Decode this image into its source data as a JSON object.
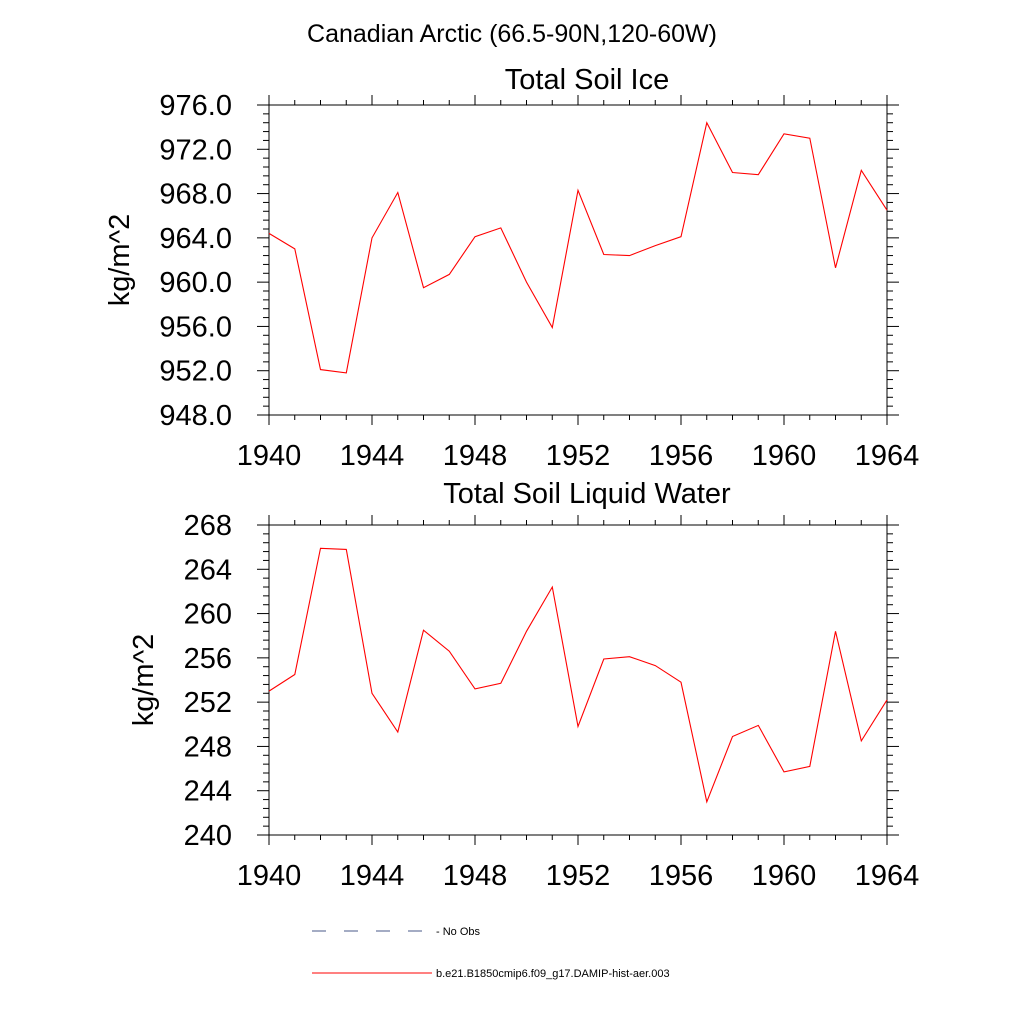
{
  "figure_title": "Canadian Arctic (66.5-90N,120-60W)",
  "chart_data": [
    {
      "type": "line",
      "title": "Total Soil Ice",
      "xlabel": "",
      "ylabel": "kg/m^2",
      "xlim": [
        1940,
        1964
      ],
      "ylim": [
        948,
        976
      ],
      "x_ticks": [
        1940,
        1944,
        1948,
        1952,
        1956,
        1960,
        1964
      ],
      "x_tick_labels": [
        "1940",
        "1944",
        "1948",
        "1952",
        "1956",
        "1960",
        "1964"
      ],
      "y_ticks": [
        948,
        952,
        956,
        960,
        964,
        968,
        972,
        976
      ],
      "y_tick_labels": [
        "948.0",
        "952.0",
        "956.0",
        "960.0",
        "964.0",
        "968.0",
        "972.0",
        "976.0"
      ],
      "grid": false,
      "series": [
        {
          "name": "b.e21.B1850cmip6.f09_g17.DAMIP-hist-aer.003",
          "color": "#ff0000",
          "x": [
            1940,
            1941,
            1942,
            1943,
            1944,
            1945,
            1946,
            1947,
            1948,
            1949,
            1950,
            1951,
            1952,
            1953,
            1954,
            1955,
            1956,
            1957,
            1958,
            1959,
            1960,
            1961,
            1962,
            1963,
            1964
          ],
          "values": [
            964.4,
            963.0,
            952.1,
            951.8,
            964.0,
            968.1,
            959.5,
            960.7,
            964.1,
            964.9,
            960.0,
            955.9,
            968.3,
            962.5,
            962.4,
            963.3,
            964.1,
            974.4,
            969.9,
            969.7,
            973.4,
            973.0,
            961.3,
            970.1,
            966.5
          ]
        }
      ]
    },
    {
      "type": "line",
      "title": "Total Soil Liquid Water",
      "xlabel": "",
      "ylabel": "kg/m^2",
      "xlim": [
        1940,
        1964
      ],
      "ylim": [
        240,
        268
      ],
      "x_ticks": [
        1940,
        1944,
        1948,
        1952,
        1956,
        1960,
        1964
      ],
      "x_tick_labels": [
        "1940",
        "1944",
        "1948",
        "1952",
        "1956",
        "1960",
        "1964"
      ],
      "y_ticks": [
        240,
        244,
        248,
        252,
        256,
        260,
        264,
        268
      ],
      "y_tick_labels": [
        "240",
        "244",
        "248",
        "252",
        "256",
        "260",
        "264",
        "268"
      ],
      "grid": false,
      "series": [
        {
          "name": "b.e21.B1850cmip6.f09_g17.DAMIP-hist-aer.003",
          "color": "#ff0000",
          "x": [
            1940,
            1941,
            1942,
            1943,
            1944,
            1945,
            1946,
            1947,
            1948,
            1949,
            1950,
            1951,
            1952,
            1953,
            1954,
            1955,
            1956,
            1957,
            1958,
            1959,
            1960,
            1961,
            1962,
            1963,
            1964
          ],
          "values": [
            253.0,
            254.5,
            265.9,
            265.8,
            252.8,
            249.3,
            258.5,
            256.6,
            253.2,
            253.7,
            258.4,
            262.4,
            249.8,
            255.9,
            256.1,
            255.3,
            253.8,
            243.0,
            248.9,
            249.9,
            245.7,
            246.2,
            258.4,
            248.5,
            252.2
          ]
        }
      ]
    }
  ],
  "legend": {
    "placement": "bottom",
    "entries": [
      {
        "label": "No Obs",
        "color": "#4a5a8a",
        "style": "dashed"
      },
      {
        "label": "b.e21.B1850cmip6.f09_g17.DAMIP-hist-aer.003",
        "color": "#ff0000",
        "style": "solid"
      }
    ]
  }
}
